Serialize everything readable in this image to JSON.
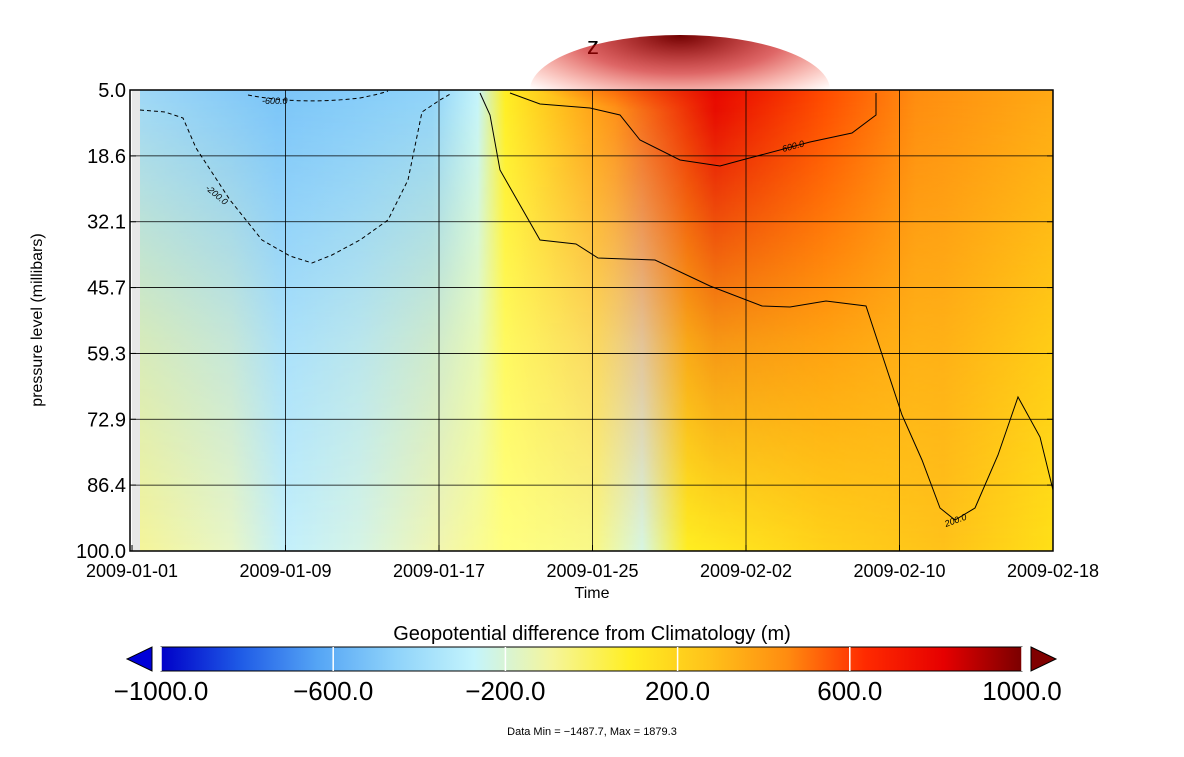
{
  "chart_data": {
    "type": "heatmap",
    "title": "z",
    "xlabel": "Time",
    "ylabel": "pressure level (millibars)",
    "x_ticks": [
      "2009-01-01",
      "2009-01-09",
      "2009-01-17",
      "2009-01-25",
      "2009-02-02",
      "2009-02-10",
      "2009-02-18"
    ],
    "y_ticks": [
      "5.0",
      "18.6",
      "32.1",
      "45.7",
      "59.3",
      "72.9",
      "86.4",
      "100.0"
    ],
    "xlim": [
      "2009-01-01",
      "2009-02-18"
    ],
    "ylim": [
      100.0,
      5.0
    ],
    "grid": true,
    "colorbar": {
      "label": "Geopotential difference from Climatology (m)",
      "ticks": [
        "-1000.0",
        "-600.0",
        "-200.0",
        "200.0",
        "600.0",
        "1000.0"
      ],
      "range": [
        -1000,
        1000
      ],
      "extend": "both",
      "colors": [
        "#0000c8",
        "#1e5ae6",
        "#55a5f5",
        "#8fd3fa",
        "#c4f4fc",
        "#f5f59a",
        "#ffee22",
        "#ffc21a",
        "#ff8c10",
        "#ff2a00",
        "#e60000",
        "#7a0000"
      ]
    },
    "contours": [
      {
        "level": -600.0,
        "label": "-600.0",
        "style": "dashed"
      },
      {
        "level": -200.0,
        "label": "-200.0",
        "style": "dashed"
      },
      {
        "level": 200.0,
        "label": "200.0",
        "style": "solid"
      },
      {
        "level": 600.0,
        "label": "600.0",
        "style": "solid"
      }
    ],
    "footer": "Data Min = −1487.7, Max = 1879.3"
  }
}
